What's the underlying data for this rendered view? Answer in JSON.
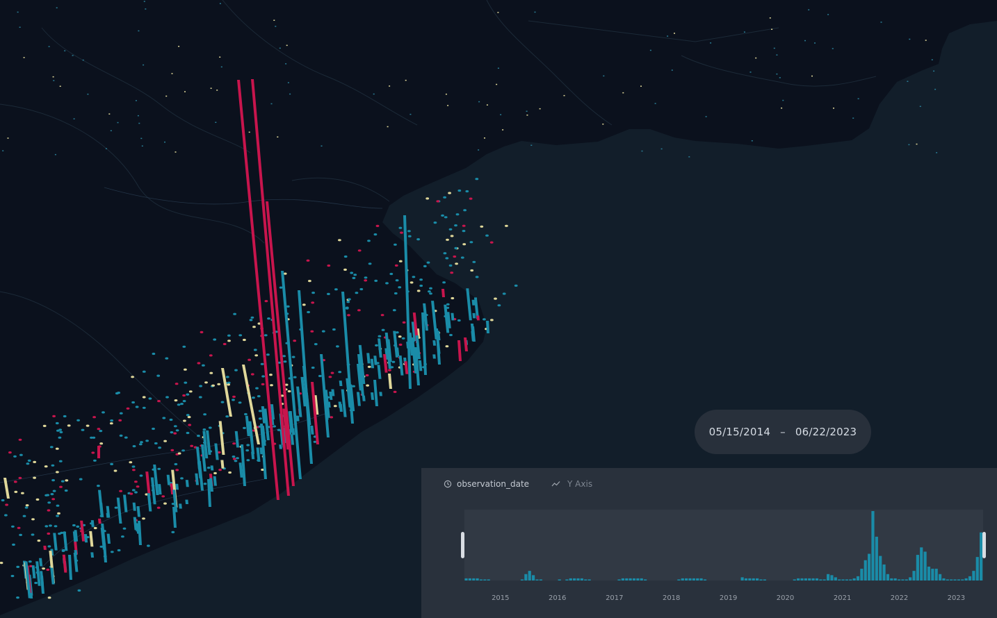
{
  "date_range": {
    "start": "05/15/2014",
    "separator": "–",
    "end": "06/22/2023"
  },
  "timeline": {
    "field_label": "observation_date",
    "y_axis_label": "Y Axis",
    "ticks": [
      "2015",
      "2016",
      "2017",
      "2018",
      "2019",
      "2020",
      "2021",
      "2022",
      "2023"
    ],
    "icons": {
      "field": "clock-icon",
      "y_axis": "trend-line-icon"
    }
  },
  "colors": {
    "land": "#0b111d",
    "water": "#121e2a",
    "bar_teal": "#1a8ca8",
    "bar_crimson": "#c8154d",
    "bar_yellow": "#e0d89a",
    "histogram": "#1a8ca8"
  },
  "chart_data": {
    "type": "bar",
    "title": "",
    "xlabel": "",
    "ylabel": "",
    "x_range": [
      "2014-05-15",
      "2023-06-22"
    ],
    "bin": "month",
    "values": [
      2,
      2,
      2,
      2,
      1,
      1,
      1,
      0,
      0,
      0,
      0,
      0,
      0,
      0,
      0,
      1,
      6,
      9,
      5,
      1,
      1,
      0,
      0,
      0,
      0,
      1,
      0,
      1,
      2,
      2,
      2,
      2,
      1,
      1,
      0,
      0,
      0,
      0,
      0,
      0,
      0,
      1,
      2,
      2,
      2,
      2,
      2,
      2,
      1,
      0,
      0,
      0,
      0,
      0,
      0,
      0,
      0,
      1,
      2,
      2,
      2,
      2,
      2,
      2,
      1,
      0,
      0,
      0,
      0,
      0,
      0,
      0,
      0,
      0,
      3,
      2,
      2,
      2,
      2,
      1,
      1,
      0,
      0,
      0,
      0,
      0,
      0,
      0,
      1,
      2,
      2,
      2,
      2,
      2,
      2,
      1,
      1,
      6,
      5,
      3,
      1,
      1,
      1,
      1,
      2,
      4,
      11,
      19,
      25,
      65,
      41,
      23,
      15,
      6,
      2,
      2,
      1,
      1,
      1,
      3,
      9,
      24,
      31,
      27,
      13,
      11,
      11,
      6,
      2,
      1,
      1,
      1,
      1,
      1,
      2,
      4,
      9,
      22,
      45
    ]
  }
}
